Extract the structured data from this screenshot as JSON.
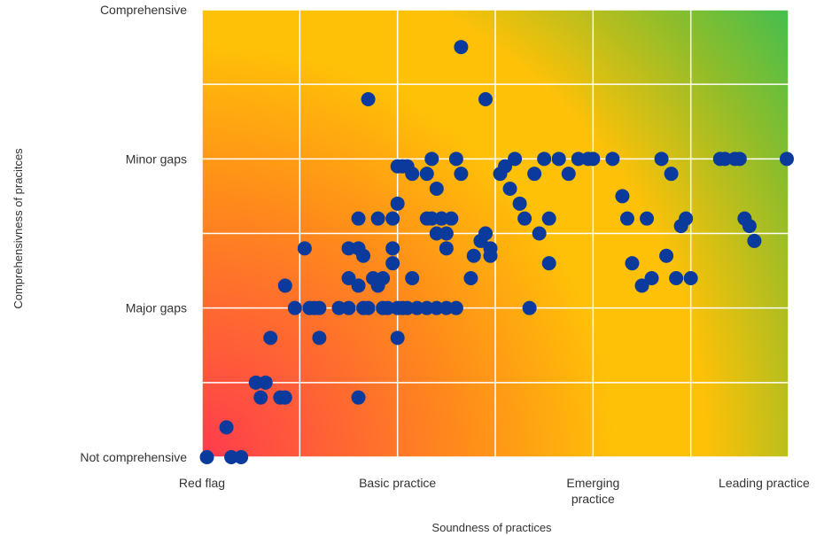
{
  "chart_data": {
    "type": "scatter",
    "title": "",
    "xlabel": "Soundness of practices",
    "ylabel": "Comprehensivness of pracitces",
    "xlim": [
      0,
      6
    ],
    "ylim": [
      0,
      6
    ],
    "x_ticks": [
      {
        "value": 0,
        "lines": [
          "Red flag"
        ]
      },
      {
        "value": 2,
        "lines": [
          "Basic practice"
        ]
      },
      {
        "value": 4,
        "lines": [
          "Emerging",
          "practice"
        ]
      },
      {
        "value": 5.75,
        "lines": [
          "Leading practice"
        ]
      }
    ],
    "y_ticks": [
      {
        "value": 0,
        "label": "Not comprehensive"
      },
      {
        "value": 2,
        "label": "Major gaps"
      },
      {
        "value": 4,
        "label": "Minor gaps"
      },
      {
        "value": 6,
        "label": "Comprehensive"
      }
    ],
    "grid": true,
    "background": "diagonal gradient red (low-left) → orange → yellow → green (top-right)",
    "colors": {
      "marker": "#0a3a9c",
      "grid": "#ffffff",
      "gradient_red": "#ff3b4e",
      "gradient_orange": "#ff8c1a",
      "gradient_yellow": "#ffc107",
      "gradient_green": "#16c064"
    },
    "points": [
      [
        0.05,
        0.0
      ],
      [
        0.3,
        0.0
      ],
      [
        0.4,
        0.0
      ],
      [
        0.25,
        0.4
      ],
      [
        0.6,
        0.8
      ],
      [
        0.65,
        1.0
      ],
      [
        0.55,
        1.0
      ],
      [
        0.8,
        0.8
      ],
      [
        0.7,
        1.6
      ],
      [
        0.85,
        0.8
      ],
      [
        0.95,
        2.0
      ],
      [
        0.85,
        2.3
      ],
      [
        1.05,
        2.8
      ],
      [
        1.1,
        2.0
      ],
      [
        1.15,
        2.0
      ],
      [
        1.2,
        2.0
      ],
      [
        1.2,
        1.6
      ],
      [
        1.4,
        2.0
      ],
      [
        1.5,
        2.0
      ],
      [
        1.5,
        2.4
      ],
      [
        1.6,
        2.3
      ],
      [
        1.5,
        2.8
      ],
      [
        1.6,
        2.8
      ],
      [
        1.65,
        2.7
      ],
      [
        1.65,
        2.0
      ],
      [
        1.7,
        2.0
      ],
      [
        1.75,
        2.4
      ],
      [
        1.8,
        2.3
      ],
      [
        1.85,
        2.4
      ],
      [
        1.85,
        2.0
      ],
      [
        1.9,
        2.0
      ],
      [
        1.6,
        0.8
      ],
      [
        1.6,
        3.2
      ],
      [
        1.8,
        3.2
      ],
      [
        1.7,
        4.8
      ],
      [
        1.95,
        2.6
      ],
      [
        1.95,
        2.8
      ],
      [
        1.95,
        3.2
      ],
      [
        2.0,
        3.4
      ],
      [
        2.0,
        2.0
      ],
      [
        2.05,
        2.0
      ],
      [
        2.05,
        3.9
      ],
      [
        2.1,
        3.9
      ],
      [
        2.15,
        3.8
      ],
      [
        2.0,
        1.6
      ],
      [
        2.0,
        3.9
      ],
      [
        2.1,
        2.0
      ],
      [
        2.15,
        2.4
      ],
      [
        2.2,
        2.0
      ],
      [
        2.3,
        3.2
      ],
      [
        2.35,
        3.2
      ],
      [
        2.45,
        3.2
      ],
      [
        2.4,
        3.0
      ],
      [
        2.5,
        2.8
      ],
      [
        2.3,
        3.8
      ],
      [
        2.35,
        4.0
      ],
      [
        2.4,
        3.6
      ],
      [
        2.45,
        3.2
      ],
      [
        2.5,
        3.0
      ],
      [
        2.55,
        3.2
      ],
      [
        2.3,
        2.0
      ],
      [
        2.4,
        2.0
      ],
      [
        2.5,
        2.0
      ],
      [
        2.6,
        2.0
      ],
      [
        2.65,
        3.8
      ],
      [
        2.6,
        4.0
      ],
      [
        2.65,
        5.5
      ],
      [
        2.75,
        2.4
      ],
      [
        2.78,
        2.7
      ],
      [
        2.85,
        2.9
      ],
      [
        2.9,
        3.0
      ],
      [
        2.95,
        2.8
      ],
      [
        2.95,
        2.7
      ],
      [
        2.9,
        4.8
      ],
      [
        2.9,
        3.0
      ],
      [
        3.05,
        3.8
      ],
      [
        3.1,
        3.9
      ],
      [
        3.15,
        3.6
      ],
      [
        3.2,
        4.0
      ],
      [
        3.25,
        3.4
      ],
      [
        3.3,
        3.2
      ],
      [
        3.35,
        2.0
      ],
      [
        3.4,
        3.8
      ],
      [
        3.45,
        3.0
      ],
      [
        3.5,
        4.0
      ],
      [
        3.55,
        3.2
      ],
      [
        3.55,
        2.6
      ],
      [
        3.65,
        4.0
      ],
      [
        3.75,
        3.8
      ],
      [
        3.85,
        4.0
      ],
      [
        3.95,
        4.0
      ],
      [
        4.0,
        4.0
      ],
      [
        4.2,
        4.0
      ],
      [
        4.3,
        3.5
      ],
      [
        4.35,
        3.2
      ],
      [
        4.4,
        2.6
      ],
      [
        4.5,
        2.3
      ],
      [
        4.55,
        3.2
      ],
      [
        4.6,
        2.4
      ],
      [
        4.7,
        4.0
      ],
      [
        4.75,
        2.7
      ],
      [
        4.8,
        3.8
      ],
      [
        4.85,
        2.4
      ],
      [
        4.9,
        3.1
      ],
      [
        4.95,
        3.2
      ],
      [
        5.0,
        2.4
      ],
      [
        5.3,
        4.0
      ],
      [
        5.35,
        4.0
      ],
      [
        5.45,
        4.0
      ],
      [
        5.5,
        4.0
      ],
      [
        5.55,
        3.2
      ],
      [
        5.6,
        3.1
      ],
      [
        5.65,
        2.9
      ],
      [
        6.2,
        4.0
      ]
    ]
  }
}
